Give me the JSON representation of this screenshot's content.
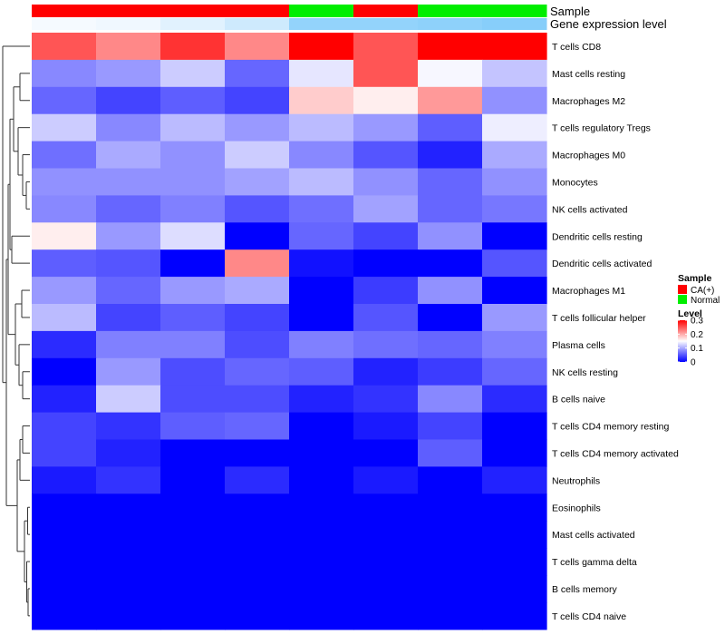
{
  "chart_data": {
    "type": "heatmap",
    "annotation_tracks": [
      {
        "name": "Sample",
        "values": [
          "CA(+)",
          "CA(+)",
          "CA(+)",
          "CA(+)",
          "Normal",
          "CA(+)",
          "Normal",
          "Normal"
        ]
      },
      {
        "name": "Gene expression level",
        "values": [
          0.0,
          0.02,
          0.08,
          0.16,
          0.4,
          0.4,
          0.42,
          0.45
        ]
      }
    ],
    "rows": [
      "T cells CD8",
      "Mast cells resting",
      "Macrophages M2",
      "T cells regulatory  Tregs",
      "Macrophages M0",
      "Monocytes",
      "NK cells activated",
      "Dendritic cells resting",
      "Dendritic cells activated",
      "Macrophages M1",
      "T cells follicular helper",
      "Plasma cells",
      "NK cells resting",
      "B cells naive",
      "T cells CD4 memory resting",
      "T cells CD4 memory activated",
      "Neutrophils",
      "Eosinophils",
      "Mast cells activated",
      "T cells gamma delta",
      "B cells memory",
      "T cells CD4 naive"
    ],
    "columns": 8,
    "values": [
      [
        0.25,
        0.22,
        0.27,
        0.22,
        0.3,
        0.25,
        0.3,
        0.3
      ],
      [
        0.08,
        0.09,
        0.12,
        0.06,
        0.135,
        0.25,
        0.145,
        0.115
      ],
      [
        0.06,
        0.04,
        0.055,
        0.04,
        0.18,
        0.16,
        0.21,
        0.085
      ],
      [
        0.12,
        0.08,
        0.11,
        0.09,
        0.11,
        0.09,
        0.055,
        0.14
      ],
      [
        0.065,
        0.1,
        0.085,
        0.12,
        0.08,
        0.05,
        0.02,
        0.1
      ],
      [
        0.085,
        0.085,
        0.085,
        0.095,
        0.11,
        0.085,
        0.06,
        0.085
      ],
      [
        0.08,
        0.06,
        0.075,
        0.05,
        0.065,
        0.095,
        0.06,
        0.07
      ],
      [
        0.16,
        0.09,
        0.13,
        0.0,
        0.06,
        0.04,
        0.085,
        0.0
      ],
      [
        0.055,
        0.05,
        0.0,
        0.22,
        0.01,
        0.0,
        0.0,
        0.05
      ],
      [
        0.09,
        0.06,
        0.09,
        0.1,
        0.0,
        0.035,
        0.085,
        0.0
      ],
      [
        0.11,
        0.04,
        0.055,
        0.04,
        0.0,
        0.05,
        0.0,
        0.09
      ],
      [
        0.025,
        0.075,
        0.075,
        0.045,
        0.075,
        0.065,
        0.06,
        0.075
      ],
      [
        0.0,
        0.09,
        0.045,
        0.06,
        0.055,
        0.02,
        0.035,
        0.06
      ],
      [
        0.02,
        0.12,
        0.045,
        0.045,
        0.02,
        0.03,
        0.08,
        0.025
      ],
      [
        0.04,
        0.03,
        0.055,
        0.06,
        0.0,
        0.015,
        0.04,
        0.0
      ],
      [
        0.04,
        0.02,
        0.0,
        0.0,
        0.0,
        0.0,
        0.055,
        0.0
      ],
      [
        0.015,
        0.03,
        0.0,
        0.025,
        0.0,
        0.015,
        0.0,
        0.02
      ],
      [
        0.0,
        0.0,
        0.0,
        0.0,
        0.0,
        0.0,
        0.0,
        0.0
      ],
      [
        0.0,
        0.0,
        0.0,
        0.0,
        0.0,
        0.0,
        0.0,
        0.0
      ],
      [
        0.0,
        0.0,
        0.0,
        0.0,
        0.0,
        0.0,
        0.0,
        0.0
      ],
      [
        0.0,
        0.0,
        0.0,
        0.0,
        0.0,
        0.0,
        0.0,
        0.0
      ],
      [
        0.0,
        0.0,
        0.0,
        0.0,
        0.0,
        0.0,
        0.0,
        0.0
      ]
    ],
    "color_scale": {
      "min": 0,
      "mid": 0.15,
      "max": 0.3,
      "low": "#0000ff",
      "mid_color": "#ffffff",
      "high": "#ff0000"
    },
    "legends": [
      {
        "title": "Sample",
        "entries": [
          {
            "label": "CA(+)",
            "color": "#ff0000"
          },
          {
            "label": "Normal",
            "color": "#00ee00"
          }
        ]
      },
      {
        "title": "Level",
        "ticks": [
          "0.3",
          "0.2",
          "0.1",
          "0"
        ]
      }
    ],
    "legend_placement": "right",
    "row_dendrogram": "left"
  }
}
